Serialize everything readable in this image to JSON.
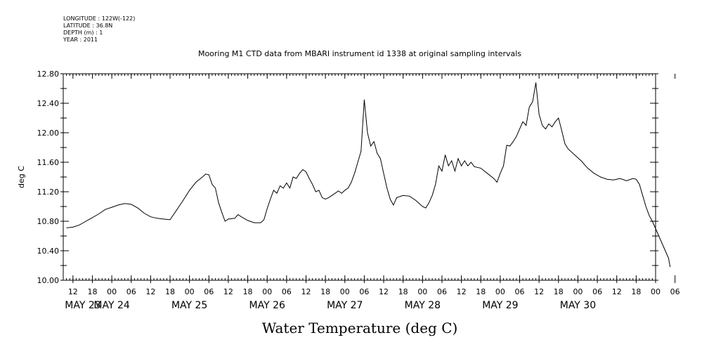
{
  "metadata": {
    "longitude": "LONGITUDE : 122W(-122)",
    "latitude": "LATITUDE : 36.8N",
    "depth": "DEPTH (m) : 1",
    "year": "YEAR : 2011"
  },
  "chart_data": {
    "type": "line",
    "title": "Mooring M1 CTD data from MBARI instrument id 1338 at original sampling intervals",
    "xlabel": "Water Temperature (deg C)",
    "ylabel": "deg C",
    "ylim": [
      10.0,
      12.8
    ],
    "y_ticks": [
      "10.00",
      "10.40",
      "10.80",
      "11.20",
      "11.60",
      "12.00",
      "12.40",
      "12.80"
    ],
    "xlim_hours": [
      9,
      192
    ],
    "hour_tick_labels": [
      "12",
      "18",
      "00",
      "06",
      "12",
      "18",
      "00",
      "06",
      "12",
      "18",
      "00",
      "06",
      "12",
      "18",
      "00",
      "06",
      "12",
      "18",
      "00",
      "06",
      "12",
      "18",
      "00",
      "06",
      "12",
      "18",
      "00",
      "06",
      "12",
      "18",
      "00",
      "06"
    ],
    "day_labels": [
      "MAY 23",
      "MAY 24",
      "MAY 25",
      "MAY 26",
      "MAY 27",
      "MAY 28",
      "MAY 29",
      "MAY 30"
    ],
    "series": [
      {
        "values": [
          [
            10,
            10.71
          ],
          [
            12,
            10.72
          ],
          [
            14,
            10.75
          ],
          [
            16,
            10.8
          ],
          [
            18,
            10.85
          ],
          [
            20,
            10.9
          ],
          [
            22,
            10.96
          ],
          [
            24,
            10.99
          ],
          [
            26,
            11.02
          ],
          [
            28,
            11.04
          ],
          [
            30,
            11.03
          ],
          [
            32,
            10.98
          ],
          [
            34,
            10.91
          ],
          [
            36,
            10.86
          ],
          [
            38,
            10.84
          ],
          [
            40,
            10.83
          ],
          [
            42,
            10.82
          ],
          [
            44,
            10.95
          ],
          [
            46,
            11.08
          ],
          [
            48,
            11.22
          ],
          [
            50,
            11.33
          ],
          [
            52,
            11.4
          ],
          [
            53,
            11.44
          ],
          [
            54,
            11.43
          ],
          [
            55,
            11.3
          ],
          [
            56,
            11.25
          ],
          [
            57,
            11.05
          ],
          [
            58,
            10.92
          ],
          [
            59,
            10.8
          ],
          [
            60,
            10.83
          ],
          [
            62,
            10.84
          ],
          [
            63,
            10.89
          ],
          [
            64,
            10.86
          ],
          [
            66,
            10.81
          ],
          [
            68,
            10.78
          ],
          [
            70,
            10.78
          ],
          [
            71,
            10.82
          ],
          [
            72,
            10.97
          ],
          [
            73,
            11.1
          ],
          [
            74,
            11.22
          ],
          [
            75,
            11.18
          ],
          [
            76,
            11.28
          ],
          [
            77,
            11.25
          ],
          [
            78,
            11.32
          ],
          [
            79,
            11.25
          ],
          [
            80,
            11.4
          ],
          [
            81,
            11.38
          ],
          [
            82,
            11.45
          ],
          [
            83,
            11.5
          ],
          [
            84,
            11.47
          ],
          [
            85,
            11.38
          ],
          [
            86,
            11.3
          ],
          [
            87,
            11.2
          ],
          [
            88,
            11.22
          ],
          [
            89,
            11.12
          ],
          [
            90,
            11.1
          ],
          [
            91,
            11.12
          ],
          [
            92,
            11.15
          ],
          [
            93,
            11.18
          ],
          [
            94,
            11.21
          ],
          [
            95,
            11.18
          ],
          [
            96,
            11.22
          ],
          [
            97,
            11.25
          ],
          [
            98,
            11.33
          ],
          [
            99,
            11.45
          ],
          [
            100,
            11.6
          ],
          [
            101,
            11.75
          ],
          [
            102,
            12.45
          ],
          [
            103,
            12.0
          ],
          [
            104,
            11.82
          ],
          [
            105,
            11.88
          ],
          [
            106,
            11.72
          ],
          [
            107,
            11.65
          ],
          [
            108,
            11.45
          ],
          [
            109,
            11.25
          ],
          [
            110,
            11.1
          ],
          [
            111,
            11.02
          ],
          [
            112,
            11.12
          ],
          [
            114,
            11.15
          ],
          [
            116,
            11.14
          ],
          [
            118,
            11.08
          ],
          [
            120,
            11.0
          ],
          [
            121,
            10.98
          ],
          [
            122,
            11.05
          ],
          [
            123,
            11.15
          ],
          [
            124,
            11.3
          ],
          [
            125,
            11.55
          ],
          [
            126,
            11.48
          ],
          [
            127,
            11.7
          ],
          [
            128,
            11.55
          ],
          [
            129,
            11.62
          ],
          [
            130,
            11.48
          ],
          [
            131,
            11.65
          ],
          [
            132,
            11.55
          ],
          [
            133,
            11.62
          ],
          [
            134,
            11.55
          ],
          [
            135,
            11.6
          ],
          [
            136,
            11.54
          ],
          [
            138,
            11.52
          ],
          [
            140,
            11.45
          ],
          [
            142,
            11.38
          ],
          [
            143,
            11.33
          ],
          [
            144,
            11.45
          ],
          [
            145,
            11.55
          ],
          [
            146,
            11.83
          ],
          [
            147,
            11.82
          ],
          [
            148,
            11.88
          ],
          [
            149,
            11.95
          ],
          [
            150,
            12.05
          ],
          [
            151,
            12.15
          ],
          [
            152,
            12.1
          ],
          [
            153,
            12.35
          ],
          [
            154,
            12.42
          ],
          [
            155,
            12.68
          ],
          [
            156,
            12.25
          ],
          [
            157,
            12.1
          ],
          [
            158,
            12.05
          ],
          [
            159,
            12.12
          ],
          [
            160,
            12.08
          ],
          [
            161,
            12.15
          ],
          [
            162,
            12.2
          ],
          [
            163,
            12.03
          ],
          [
            164,
            11.85
          ],
          [
            165,
            11.78
          ],
          [
            167,
            11.7
          ],
          [
            169,
            11.62
          ],
          [
            171,
            11.52
          ],
          [
            173,
            11.45
          ],
          [
            175,
            11.4
          ],
          [
            177,
            11.37
          ],
          [
            179,
            11.36
          ],
          [
            181,
            11.38
          ],
          [
            183,
            11.35
          ],
          [
            185,
            11.38
          ],
          [
            186,
            11.37
          ],
          [
            187,
            11.3
          ],
          [
            188,
            11.15
          ],
          [
            189,
            11.0
          ],
          [
            190,
            10.88
          ],
          [
            191,
            10.8
          ],
          [
            192,
            10.7
          ],
          [
            193,
            10.6
          ],
          [
            194,
            10.5
          ],
          [
            195,
            10.4
          ],
          [
            196,
            10.3
          ],
          [
            196.5,
            10.18
          ]
        ]
      }
    ]
  }
}
